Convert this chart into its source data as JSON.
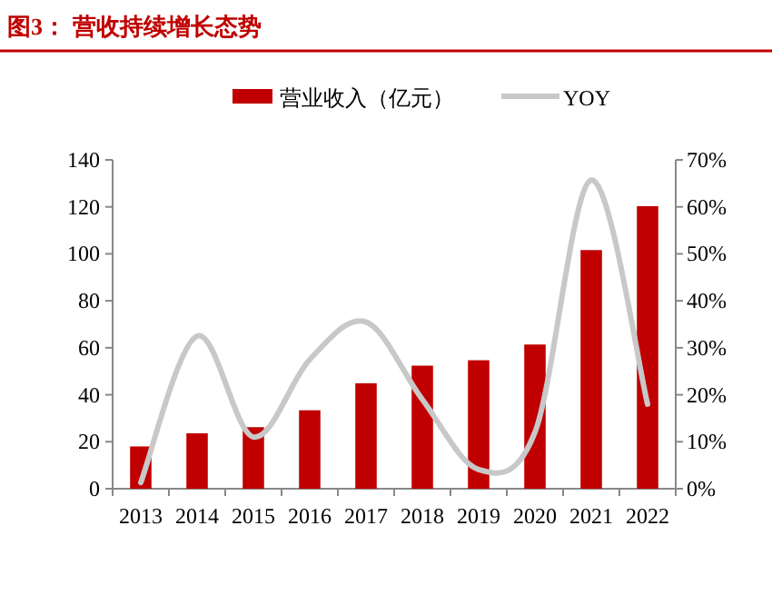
{
  "chart_data": {
    "type": "bar",
    "title": "图3：  营收持续增长态势",
    "categories": [
      "2013",
      "2014",
      "2015",
      "2016",
      "2017",
      "2018",
      "2019",
      "2020",
      "2021",
      "2022"
    ],
    "series": [
      {
        "name": "营业收入（亿元）",
        "color": "#c00000",
        "values": [
          18,
          23.6,
          26.2,
          33.4,
          44.9,
          52.4,
          54.7,
          61.4,
          101.6,
          120.3
        ]
      },
      {
        "name": "YOY",
        "type": "line",
        "axis": "y2",
        "color": "#c8c8c8",
        "values": [
          1.3,
          32.5,
          11,
          27.5,
          35.5,
          19,
          4.1,
          12,
          65.7,
          18
        ]
      }
    ],
    "ylim": [
      0,
      140
    ],
    "yticks": [
      0,
      20,
      40,
      60,
      80,
      100,
      120,
      140
    ],
    "y2lim": [
      0,
      70
    ],
    "y2ticks": [
      {
        "value": 0,
        "label": "0%"
      },
      {
        "value": 10,
        "label": "10%"
      },
      {
        "value": 20,
        "label": "20%"
      },
      {
        "value": 30,
        "label": "30%"
      },
      {
        "value": 40,
        "label": "40%"
      },
      {
        "value": 50,
        "label": "50%"
      },
      {
        "value": 60,
        "label": "60%"
      },
      {
        "value": 70,
        "label": "70%"
      }
    ],
    "legend": "top",
    "grid": false
  }
}
